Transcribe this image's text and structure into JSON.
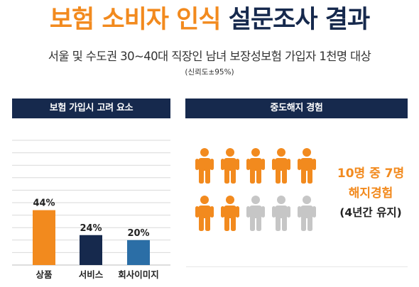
{
  "title": {
    "part1": "보험 소비자 인식",
    "part2": "설문조사 결과"
  },
  "subtitle": "서울 및 수도권 30~40대 직장인 남녀 보장성보험 가입자 1천명 대상",
  "confidence": "(신뢰도±95%)",
  "colors": {
    "orange": "#f28a1e",
    "navy": "#16294d",
    "blue": "#2b6ea6",
    "gray": "#c6c6c6"
  },
  "left_panel": {
    "header": "보험 가입시 고려 요소"
  },
  "right_panel": {
    "header": "중도해지 경험",
    "icon": "person-icon",
    "total": 10,
    "highlighted": 7,
    "callout": {
      "line1": "10명 중 7명",
      "line2": "해지경험",
      "line3": "(4년간 유지)"
    }
  },
  "chart_data": {
    "type": "bar",
    "categories": [
      "상품",
      "서비스",
      "회사이미지"
    ],
    "values": [
      44,
      24,
      20
    ],
    "value_labels": [
      "44%",
      "24%",
      "20%"
    ],
    "colors": [
      "#f28a1e",
      "#16294d",
      "#2b6ea6"
    ],
    "title": "보험 가입시 고려 요소",
    "ylim": [
      0,
      100
    ],
    "grid": true
  }
}
